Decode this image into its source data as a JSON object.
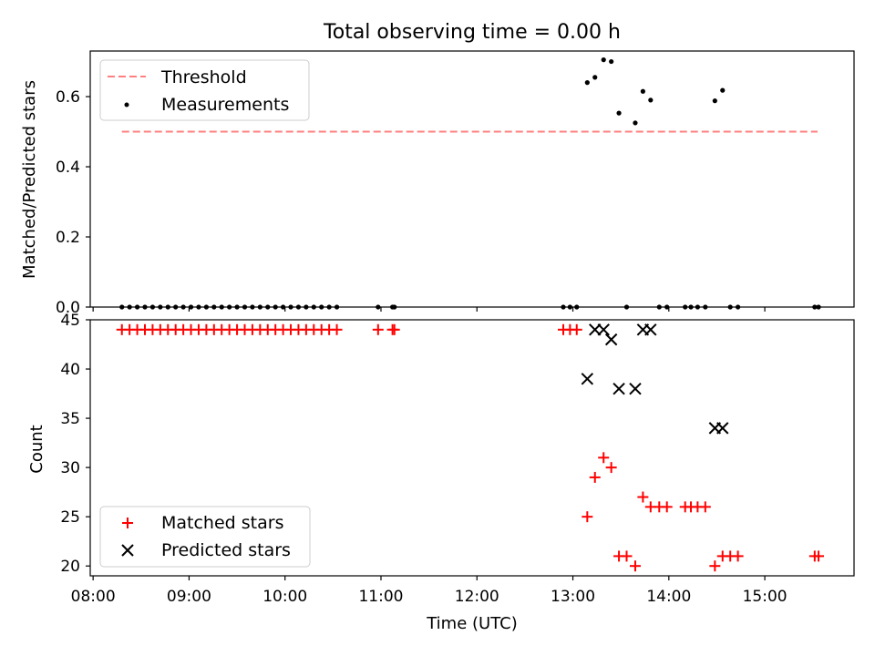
{
  "figure": {
    "title": "Total observing time = 0.00 h",
    "xlabel": "Time (UTC)",
    "xticks": [
      "08:00",
      "09:00",
      "10:00",
      "11:00",
      "12:00",
      "13:00",
      "14:00",
      "15:00"
    ]
  },
  "colors": {
    "threshold": "#ff7f7f",
    "matched": "#ff0000",
    "predicted": "#000000",
    "measurement": "#000000"
  },
  "chart_data": [
    {
      "type": "scatter",
      "title": "Total observing time = 0.00 h",
      "ylabel": "Matched/Predicted stars",
      "xlabel": "",
      "xlim": [
        7.97,
        15.93
      ],
      "ylim": [
        0,
        0.73
      ],
      "yticks": [
        "0.0",
        "0.2",
        "0.4",
        "0.6"
      ],
      "legend": {
        "position": "top-left",
        "entries": [
          "Threshold",
          "Measurements"
        ]
      },
      "threshold": {
        "name": "Threshold",
        "value": 0.5,
        "x_range": [
          8.3,
          15.55
        ]
      },
      "series": [
        {
          "name": "Measurements",
          "x": [
            8.3,
            8.38,
            8.46,
            8.54,
            8.62,
            8.7,
            8.78,
            8.86,
            8.94,
            9.02,
            9.1,
            9.18,
            9.26,
            9.34,
            9.42,
            9.5,
            9.58,
            9.66,
            9.74,
            9.82,
            9.9,
            9.98,
            10.06,
            10.14,
            10.22,
            10.3,
            10.38,
            10.46,
            10.54,
            10.97,
            11.12,
            11.14,
            12.9,
            12.97,
            13.04,
            13.15,
            13.23,
            13.32,
            13.4,
            13.48,
            13.56,
            13.65,
            13.73,
            13.81,
            13.9,
            13.98,
            14.17,
            14.23,
            14.3,
            14.38,
            14.48,
            14.56,
            14.64,
            14.72,
            15.52,
            15.56
          ],
          "y": [
            0,
            0,
            0,
            0,
            0,
            0,
            0,
            0,
            0,
            0,
            0,
            0,
            0,
            0,
            0,
            0,
            0,
            0,
            0,
            0,
            0,
            0,
            0,
            0,
            0,
            0,
            0,
            0,
            0,
            0,
            0,
            0,
            0,
            0,
            0,
            0.64,
            0.655,
            0.705,
            0.7,
            0.553,
            0,
            0.525,
            0.615,
            0.59,
            0,
            0,
            0,
            0,
            0,
            0,
            0.588,
            0.618,
            0,
            0,
            0,
            0
          ]
        }
      ]
    },
    {
      "type": "scatter",
      "ylabel": "Count",
      "xlabel": "Time (UTC)",
      "xlim": [
        7.97,
        15.93
      ],
      "ylim": [
        19,
        45
      ],
      "yticks": [
        "20",
        "25",
        "30",
        "35",
        "40",
        "45"
      ],
      "xticks": [
        "08:00",
        "09:00",
        "10:00",
        "11:00",
        "12:00",
        "13:00",
        "14:00",
        "15:00"
      ],
      "legend": {
        "position": "bottom-left",
        "entries": [
          "Matched stars",
          "Predicted stars"
        ]
      },
      "series": [
        {
          "name": "Matched stars",
          "marker": "+",
          "x": [
            8.3,
            8.38,
            8.46,
            8.54,
            8.62,
            8.7,
            8.78,
            8.86,
            8.94,
            9.02,
            9.1,
            9.18,
            9.26,
            9.34,
            9.42,
            9.5,
            9.58,
            9.66,
            9.74,
            9.82,
            9.9,
            9.98,
            10.06,
            10.14,
            10.22,
            10.3,
            10.38,
            10.46,
            10.54,
            10.97,
            11.12,
            11.14,
            12.9,
            12.97,
            13.04,
            13.15,
            13.23,
            13.32,
            13.4,
            13.48,
            13.56,
            13.65,
            13.73,
            13.81,
            13.9,
            13.98,
            14.17,
            14.23,
            14.3,
            14.38,
            14.48,
            14.56,
            14.64,
            14.72,
            15.52,
            15.56
          ],
          "y": [
            44,
            44,
            44,
            44,
            44,
            44,
            44,
            44,
            44,
            44,
            44,
            44,
            44,
            44,
            44,
            44,
            44,
            44,
            44,
            44,
            44,
            44,
            44,
            44,
            44,
            44,
            44,
            44,
            44,
            44,
            44,
            44,
            44,
            44,
            44,
            25,
            29,
            31,
            30,
            21,
            21,
            20,
            27,
            26,
            26,
            26,
            26,
            26,
            26,
            26,
            20,
            21,
            21,
            21,
            21,
            21
          ]
        },
        {
          "name": "Predicted stars",
          "marker": "x",
          "x": [
            13.15,
            13.23,
            13.32,
            13.4,
            13.48,
            13.65,
            13.73,
            13.81,
            14.48,
            14.56
          ],
          "y": [
            39,
            44,
            44,
            43,
            38,
            38,
            44,
            44,
            34,
            34
          ]
        }
      ]
    }
  ]
}
